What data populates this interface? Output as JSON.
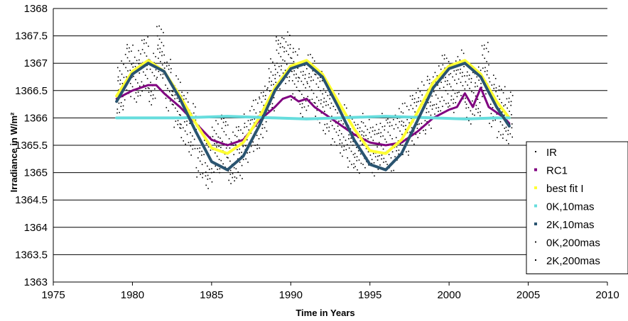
{
  "chart_data": {
    "type": "scatter",
    "title": "",
    "xlabel": "Time in Years",
    "ylabel": "Irradiance in W/m²",
    "xlim": [
      1975,
      2010
    ],
    "ylim": [
      1363,
      1368
    ],
    "xticks": [
      "1975",
      "1980",
      "1985",
      "1990",
      "1995",
      "2000",
      "2005",
      "2010"
    ],
    "yticks": [
      "1363",
      "1363.5",
      "1364",
      "1364.5",
      "1365",
      "1365.5",
      "1366",
      "1366.5",
      "1367",
      "1367.5",
      "1368"
    ],
    "grid": "horizontal",
    "legend_position": "bottom-right",
    "series": [
      {
        "name": "IR",
        "color": "#000000",
        "marker": "dot",
        "x": [
          1979.0,
          1979.5,
          1980.0,
          1980.5,
          1981.0,
          1981.5,
          1982.0,
          1982.5,
          1983.0,
          1983.5,
          1984.0,
          1984.5,
          1985.0,
          1985.5,
          1986.0,
          1986.5,
          1987.0,
          1987.5,
          1988.0,
          1988.5,
          1989.0,
          1989.5,
          1990.0,
          1990.5,
          1991.0,
          1991.5,
          1992.0,
          1992.5,
          1993.0,
          1993.5,
          1994.0,
          1994.5,
          1995.0,
          1995.5,
          1996.0,
          1996.5,
          1997.0,
          1997.5,
          1998.0,
          1998.5,
          1999.0,
          1999.5,
          2000.0,
          2000.5,
          2001.0,
          2001.5,
          2002.0,
          2002.5,
          2003.0,
          2003.5
        ],
        "y": [
          1366.6,
          1366.9,
          1366.8,
          1367.0,
          1366.7,
          1367.2,
          1366.6,
          1366.3,
          1366.0,
          1365.8,
          1365.4,
          1365.2,
          1365.5,
          1365.6,
          1365.3,
          1365.4,
          1365.7,
          1365.9,
          1366.1,
          1366.6,
          1367.0,
          1367.1,
          1366.8,
          1366.5,
          1366.7,
          1366.4,
          1366.2,
          1366.0,
          1365.8,
          1365.6,
          1365.5,
          1365.6,
          1365.4,
          1365.6,
          1365.5,
          1365.7,
          1365.8,
          1366.0,
          1366.2,
          1366.3,
          1366.5,
          1366.7,
          1366.6,
          1366.8,
          1366.4,
          1366.5,
          1366.9,
          1366.3,
          1366.1,
          1366.0
        ]
      },
      {
        "name": "RC1",
        "color": "#800080",
        "marker": "line",
        "x": [
          1979.0,
          1980.0,
          1981.0,
          1981.5,
          1982.0,
          1983.0,
          1984.0,
          1985.0,
          1986.0,
          1987.0,
          1988.0,
          1989.0,
          1989.5,
          1990.0,
          1990.5,
          1991.0,
          1991.5,
          1992.0,
          1993.0,
          1994.0,
          1995.0,
          1996.0,
          1997.0,
          1998.0,
          1999.0,
          2000.0,
          2000.5,
          2001.0,
          2001.5,
          2002.0,
          2002.5,
          2003.0,
          2003.5,
          2003.8
        ],
        "y": [
          1366.35,
          1366.5,
          1366.6,
          1366.6,
          1366.45,
          1366.2,
          1365.9,
          1365.6,
          1365.5,
          1365.6,
          1365.95,
          1366.2,
          1366.35,
          1366.4,
          1366.3,
          1366.35,
          1366.2,
          1366.1,
          1365.9,
          1365.7,
          1365.55,
          1365.5,
          1365.55,
          1365.75,
          1366.0,
          1366.15,
          1366.2,
          1366.45,
          1366.2,
          1366.55,
          1366.2,
          1366.1,
          1366.0,
          1365.9
        ]
      },
      {
        "name": "best fit I",
        "color": "#ffff33",
        "marker": "line",
        "x": [
          1979.0,
          1980.0,
          1981.0,
          1982.0,
          1983.0,
          1984.0,
          1985.0,
          1986.0,
          1987.0,
          1988.0,
          1989.0,
          1990.0,
          1991.0,
          1992.0,
          1993.0,
          1994.0,
          1995.0,
          1996.0,
          1997.0,
          1998.0,
          1999.0,
          2000.0,
          2001.0,
          2002.0,
          2003.0,
          2003.8
        ],
        "y": [
          1366.4,
          1366.85,
          1367.05,
          1366.85,
          1366.4,
          1365.9,
          1365.45,
          1365.35,
          1365.55,
          1366.0,
          1366.55,
          1366.95,
          1367.05,
          1366.8,
          1366.3,
          1365.8,
          1365.4,
          1365.35,
          1365.6,
          1366.1,
          1366.65,
          1366.95,
          1367.05,
          1366.8,
          1366.3,
          1366.0
        ]
      },
      {
        "name": "0K,10mas",
        "color": "#66dddd",
        "marker": "line",
        "x": [
          1979.0,
          1981.0,
          1983.0,
          1985.0,
          1986.0,
          1987.0,
          1989.0,
          1991.0,
          1993.0,
          1995.0,
          1996.0,
          1997.0,
          1999.0,
          2001.0,
          2003.0,
          2003.8
        ],
        "y": [
          1366.0,
          1366.0,
          1366.0,
          1366.02,
          1366.03,
          1366.02,
          1366.0,
          1365.98,
          1366.0,
          1366.02,
          1366.03,
          1366.02,
          1366.0,
          1365.98,
          1366.0,
          1366.0
        ]
      },
      {
        "name": "2K,10mas",
        "color": "#2a5470",
        "marker": "line",
        "x": [
          1979.0,
          1980.0,
          1981.0,
          1982.0,
          1983.0,
          1984.0,
          1985.0,
          1986.0,
          1987.0,
          1988.0,
          1989.0,
          1990.0,
          1991.0,
          1992.0,
          1993.0,
          1994.0,
          1995.0,
          1996.0,
          1997.0,
          1998.0,
          1999.0,
          2000.0,
          2001.0,
          2002.0,
          2003.0,
          2003.8
        ],
        "y": [
          1366.3,
          1366.8,
          1367.0,
          1366.85,
          1366.35,
          1365.75,
          1365.2,
          1365.05,
          1365.3,
          1365.85,
          1366.5,
          1366.9,
          1367.0,
          1366.75,
          1366.2,
          1365.6,
          1365.15,
          1365.05,
          1365.35,
          1365.95,
          1366.55,
          1366.9,
          1367.0,
          1366.75,
          1366.2,
          1365.85
        ]
      },
      {
        "name": "0K,200mas",
        "color": "#1a1a1a",
        "marker": "dot",
        "x": [],
        "y": []
      },
      {
        "name": "2K,200mas",
        "color": "#000000",
        "marker": "dot",
        "x": [],
        "y": []
      }
    ]
  }
}
